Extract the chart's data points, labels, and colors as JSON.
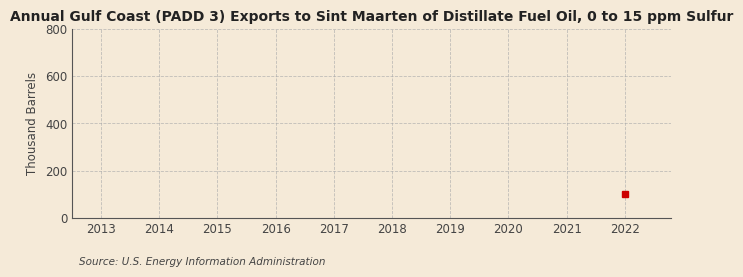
{
  "title": "Annual Gulf Coast (PADD 3) Exports to Sint Maarten of Distillate Fuel Oil, 0 to 15 ppm Sulfur",
  "ylabel": "Thousand Barrels",
  "source": "Source: U.S. Energy Information Administration",
  "x_data": [
    2022
  ],
  "y_data": [
    100
  ],
  "marker_color": "#cc0000",
  "marker_size": 4,
  "xlim": [
    2012.5,
    2022.8
  ],
  "ylim": [
    0,
    800
  ],
  "yticks": [
    0,
    200,
    400,
    600,
    800
  ],
  "xticks": [
    2013,
    2014,
    2015,
    2016,
    2017,
    2018,
    2019,
    2020,
    2021,
    2022
  ],
  "background_color": "#f5ead8",
  "grid_color": "#aaaaaa",
  "title_fontsize": 10,
  "axis_fontsize": 8.5,
  "source_fontsize": 7.5,
  "tick_color": "#444444"
}
